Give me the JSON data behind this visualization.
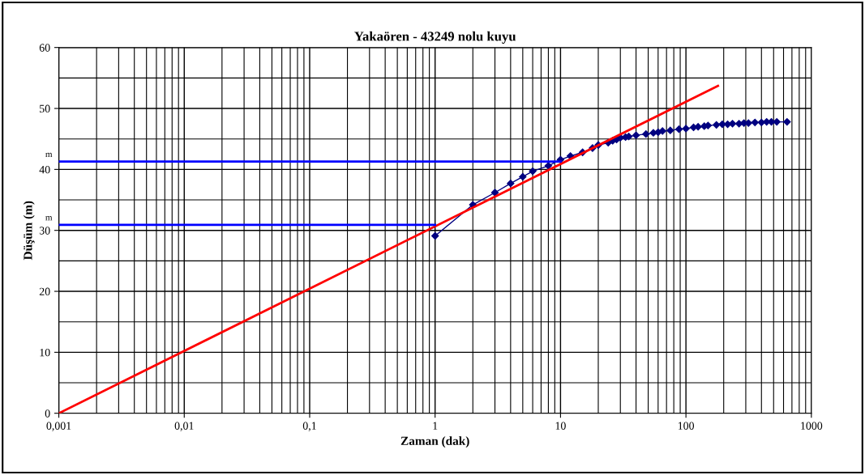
{
  "chart_data": {
    "type": "line",
    "title": "Yakaören - 43249 nolu kuyu",
    "xlabel": "Zaman (dak)",
    "ylabel": "Düşüm (m)",
    "log": "x",
    "grid": true,
    "legend": false,
    "xlim": [
      0.001,
      1000
    ],
    "ylim": [
      0,
      60
    ],
    "xticks": [
      {
        "value": 0.001,
        "label": "0,001"
      },
      {
        "value": 0.01,
        "label": "0,01"
      },
      {
        "value": 0.1,
        "label": "0,1"
      },
      1,
      10,
      100,
      1000
    ],
    "yticks": [
      0,
      10,
      20,
      30,
      40,
      50,
      60
    ],
    "annotations": [
      {
        "text": "m",
        "x": 0.001,
        "y": 41.3
      },
      {
        "text": "m",
        "x": 0.001,
        "y": 30.9
      }
    ],
    "series": [
      {
        "color": "#000080",
        "marker": "diamond",
        "x": [
          1,
          2,
          3,
          4,
          5,
          6,
          8,
          10,
          12,
          15,
          18,
          20,
          24,
          26,
          28,
          30,
          33,
          35,
          40,
          48,
          55,
          60,
          65,
          75,
          88,
          100,
          115,
          125,
          140,
          150,
          175,
          195,
          215,
          235,
          265,
          290,
          315,
          355,
          400,
          440,
          480,
          530,
          640
        ],
        "values": [
          29.1,
          34.2,
          36.2,
          37.7,
          38.8,
          39.7,
          40.6,
          41.6,
          42.2,
          42.8,
          43.5,
          44.0,
          44.4,
          44.7,
          44.9,
          45.2,
          45.3,
          45.4,
          45.6,
          45.8,
          46.0,
          46.1,
          46.3,
          46.4,
          46.6,
          46.7,
          46.9,
          47.0,
          47.1,
          47.2,
          47.3,
          47.4,
          47.4,
          47.5,
          47.5,
          47.6,
          47.6,
          47.7,
          47.7,
          47.8,
          47.8,
          47.8,
          47.8
        ]
      },
      {
        "type": "line",
        "color": "#ff0000",
        "marker": "none",
        "x": [
          0.001,
          180
        ],
        "values": [
          0,
          53.7
        ]
      },
      {
        "type": "line",
        "color": "#0000ff",
        "marker": "none",
        "x": [
          0.001,
          10
        ],
        "values": [
          41.3,
          41.3
        ]
      },
      {
        "type": "line",
        "color": "#0000ff",
        "marker": "none",
        "x": [
          0.001,
          1
        ],
        "values": [
          30.9,
          30.9
        ]
      }
    ]
  }
}
